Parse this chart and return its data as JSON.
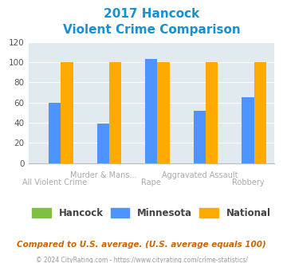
{
  "title_line1": "2017 Hancock",
  "title_line2": "Violent Crime Comparison",
  "title_color": "#1a8fd1",
  "hancock_values": [
    0,
    0,
    0,
    0,
    0
  ],
  "minnesota_values": [
    60,
    39,
    103,
    52,
    65
  ],
  "national_values": [
    100,
    100,
    100,
    100,
    100
  ],
  "hancock_color": "#80c040",
  "minnesota_color": "#4d94ff",
  "national_color": "#ffaa00",
  "bg_color": "#e0eaef",
  "ylim": [
    0,
    120
  ],
  "yticks": [
    0,
    20,
    40,
    60,
    80,
    100,
    120
  ],
  "legend_labels": [
    "Hancock",
    "Minnesota",
    "National"
  ],
  "top_labels": [
    "",
    "Murder & Mans...",
    "",
    "Aggravated Assault",
    ""
  ],
  "bot_labels": [
    "All Violent Crime",
    "",
    "Rape",
    "",
    "Robbery"
  ],
  "footnote1": "Compared to U.S. average. (U.S. average equals 100)",
  "footnote2": "© 2024 CityRating.com - https://www.cityrating.com/crime-statistics/",
  "footnote1_color": "#cc6600",
  "footnote2_color": "#999999",
  "label_color": "#aaaaaa",
  "n_groups": 5,
  "bar_width": 0.25
}
